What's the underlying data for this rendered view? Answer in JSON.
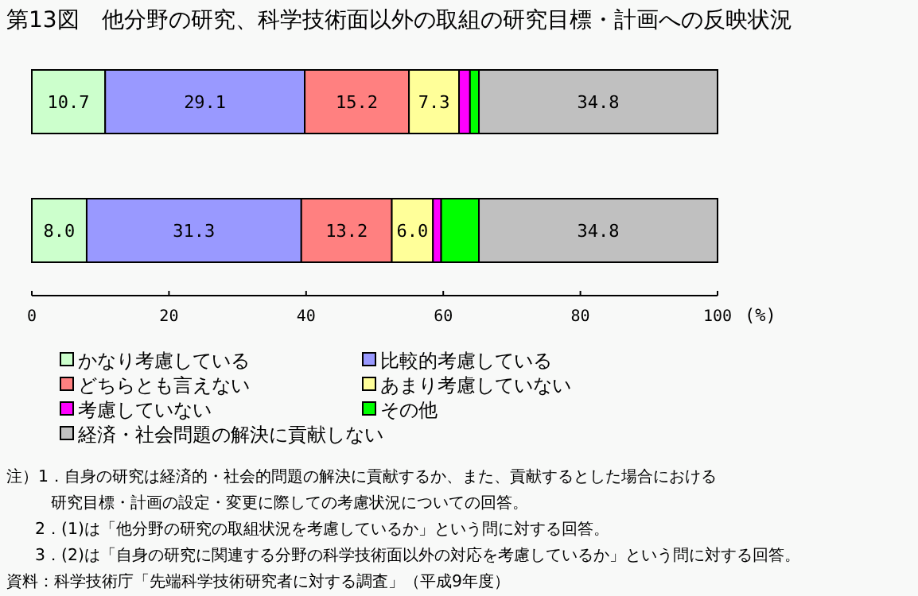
{
  "chart_data": {
    "type": "bar",
    "orientation": "horizontal",
    "stacked": true,
    "title": "第13図　他分野の研究、科学技術面以外の取組の研究目標・計画への反映状況",
    "xlabel": "(%)",
    "categories": [
      null,
      null
    ],
    "xlim": [
      0,
      100
    ],
    "xticks": [
      0,
      20,
      40,
      60,
      80,
      100
    ],
    "legend": "bottom",
    "series": [
      {
        "name": "かなり考慮している",
        "color": "#ccffcc",
        "values": [
          10.7,
          8.0
        ],
        "value_labels": [
          "10.7",
          "8.0"
        ]
      },
      {
        "name": "比較的考慮している",
        "color": "#9999ff",
        "values": [
          29.1,
          31.3
        ],
        "value_labels": [
          "29.1",
          "31.3"
        ]
      },
      {
        "name": "どちらとも言えない",
        "color": "#ff8080",
        "values": [
          15.2,
          13.2
        ],
        "value_labels": [
          "15.2",
          "13.2"
        ]
      },
      {
        "name": "あまり考慮していない",
        "color": "#ffff99",
        "values": [
          7.3,
          6.0
        ],
        "value_labels": [
          "7.3",
          "6.0"
        ]
      },
      {
        "name": "考慮していない",
        "color": "#ff00ff",
        "values": [
          1.6,
          1.2
        ],
        "value_labels": [
          null,
          null
        ]
      },
      {
        "name": "その他",
        "color": "#00ff00",
        "values": [
          1.3,
          5.5
        ],
        "value_labels": [
          null,
          null
        ]
      },
      {
        "name": "経済・社会問題の解決に貢献しない",
        "color": "#c0c0c0",
        "values": [
          34.8,
          34.8
        ],
        "value_labels": [
          "34.8",
          "34.8"
        ]
      }
    ],
    "annotations": [
      "注）1．自身の研究は経済的・社会的問題の解決に貢献するか、また、貢献するとした場合における",
      "研究目標・計画の設定・変更に際しての考慮状況についての回答。",
      "2．(1)は「他分野の研究の取組状況を考慮しているか」という問に対する回答。",
      "3．(2)は「自身の研究に関連する分野の科学技術面以外の対応を考慮しているか」という問に対する回答。",
      "資料：科学技術庁「先端科学技術研究者に対する調査」（平成9年度）"
    ]
  }
}
